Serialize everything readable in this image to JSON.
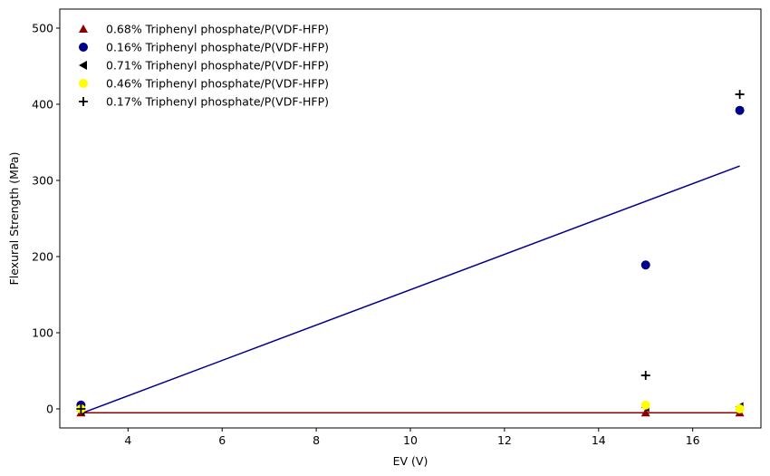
{
  "chart_data": {
    "type": "scatter",
    "xlabel": "EV (V)",
    "ylabel": "Flexural Strength (MPa)",
    "xlim": [
      2.55,
      17.45
    ],
    "ylim": [
      -25,
      525
    ],
    "xticks": [
      4,
      6,
      8,
      10,
      12,
      14,
      16
    ],
    "yticks": [
      0,
      100,
      200,
      300,
      400,
      500
    ],
    "grid": false,
    "legend_position": "top-left",
    "series": [
      {
        "name": "0.68% Triphenyl phosphate/P(VDF-HFP)",
        "marker": "triangle-up",
        "color": "#8b0000",
        "points": [
          [
            3,
            -5
          ],
          [
            15,
            -5
          ],
          [
            17,
            -5
          ]
        ]
      },
      {
        "name": "0.16% Triphenyl phosphate/P(VDF-HFP)",
        "marker": "circle",
        "color": "#00008b",
        "points": [
          [
            3,
            5
          ],
          [
            15,
            189
          ],
          [
            17,
            392
          ]
        ]
      },
      {
        "name": "0.71% Triphenyl phosphate/P(VDF-HFP)",
        "marker": "triangle-left",
        "color": "#000000",
        "points": [
          [
            3,
            -3
          ],
          [
            15,
            2
          ],
          [
            17,
            3
          ]
        ]
      },
      {
        "name": "0.46% Triphenyl phosphate/P(VDF-HFP)",
        "marker": "circle",
        "color": "#ffff00",
        "points": [
          [
            3,
            0
          ],
          [
            15,
            5
          ],
          [
            17,
            0
          ]
        ]
      },
      {
        "name": "0.17% Triphenyl phosphate/P(VDF-HFP)",
        "marker": "plus",
        "color": "#000000",
        "points": [
          [
            3,
            0
          ],
          [
            15,
            44
          ],
          [
            17,
            413
          ]
        ]
      }
    ],
    "fit_lines": [
      {
        "color": "#00008b",
        "points": [
          [
            3,
            -6
          ],
          [
            17,
            319
          ]
        ]
      },
      {
        "color": "#8b0000",
        "points": [
          [
            3,
            -5
          ],
          [
            17,
            -5
          ]
        ]
      }
    ]
  }
}
